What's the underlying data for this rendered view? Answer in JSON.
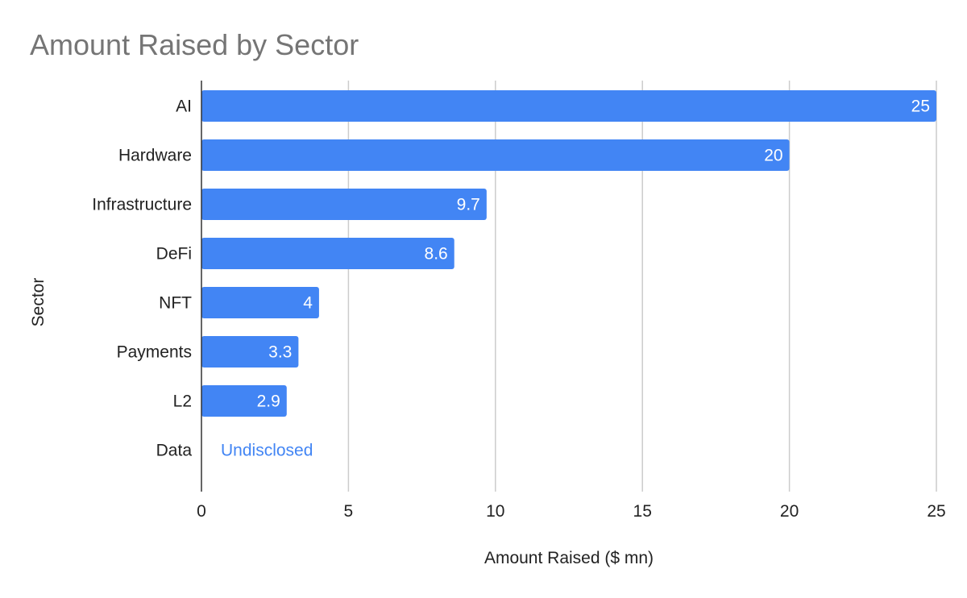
{
  "chart_data": {
    "type": "bar",
    "orientation": "horizontal",
    "title": "Amount Raised by Sector",
    "xlabel": "Amount Raised ($ mn)",
    "ylabel": "Sector",
    "categories": [
      "AI",
      "Hardware",
      "Infrastructure",
      "DeFi",
      "NFT",
      "Payments",
      "L2",
      "Data"
    ],
    "values": [
      25,
      20,
      9.7,
      8.6,
      4,
      3.3,
      2.9,
      null
    ],
    "data_labels": [
      "25",
      "20",
      "9.7",
      "8.6",
      "4",
      "3.3",
      "2.9",
      "Undisclosed"
    ],
    "xlim": [
      0,
      25
    ],
    "xticks": [
      0,
      5,
      10,
      15,
      20,
      25
    ],
    "grid": true,
    "legend": "none",
    "bar_color": "#4285f4",
    "title_color": "#757575"
  }
}
